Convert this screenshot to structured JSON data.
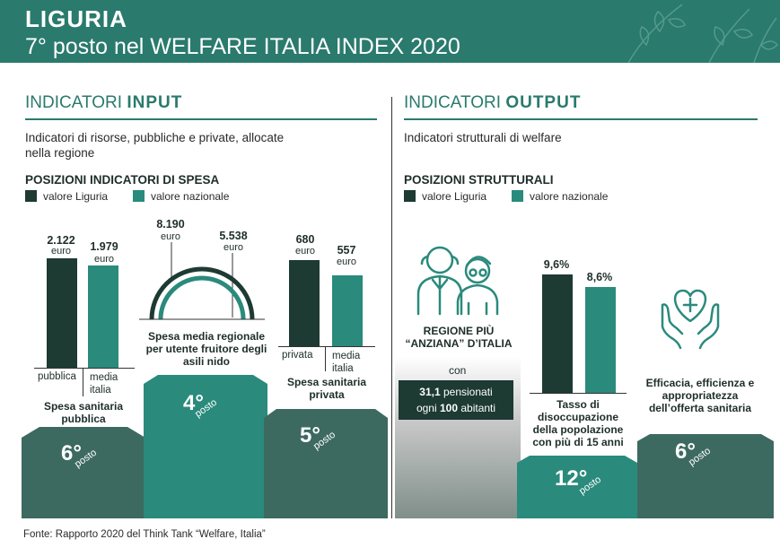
{
  "header": {
    "title": "LIGURIA",
    "subtitle": "7° posto nel WELFARE ITALIA INDEX 2020"
  },
  "input": {
    "title_plain": "INDICATORI ",
    "title_bold": "INPUT",
    "description": "Indicatori di risorse, pubbliche e private, allocate nella regione",
    "subtitle": "POSIZIONI INDICATORI DI SPESA",
    "legend": {
      "liguria": "valore Liguria",
      "nazionale": "valore nazionale"
    },
    "spesa_pubblica": {
      "caption": "Spesa sanitaria pubblica",
      "rank": "6°",
      "rank_word": "posto",
      "labels": [
        "pubblica",
        "media italia"
      ]
    },
    "asili": {
      "caption": "Spesa media regionale per utente fruitore degli asili nido",
      "rank": "4°",
      "rank_word": "posto"
    },
    "spesa_privata": {
      "caption": "Spesa sanitaria privata",
      "rank": "5°",
      "rank_word": "posto",
      "labels": [
        "privata",
        "media italia"
      ]
    }
  },
  "output": {
    "title_plain": "INDICATORI ",
    "title_bold": "OUTPUT",
    "description": "Indicatori strutturali di welfare",
    "subtitle": "POSIZIONI STRUTTURALI",
    "legend": {
      "liguria": "valore Liguria",
      "nazionale": "valore nazionale"
    },
    "anziana": {
      "caption": "REGIONE PIÙ “ANZIANA” D’ITALIA",
      "con": "con",
      "stat_value1": "31,1",
      "stat_text1": " pensionati",
      "stat_text2": "ogni ",
      "stat_value2": "100",
      "stat_text3": " abitanti"
    },
    "disoccupazione": {
      "caption": "Tasso di disoccupazione della popolazione con più di 15 anni",
      "rank": "12°",
      "rank_word": "posto"
    },
    "efficacia": {
      "caption": "Efficacia, efficienza e appropriatezza dell’offerta sanitaria",
      "rank": "6°",
      "rank_word": "posto"
    }
  },
  "footer": "Fonte: Rapporto 2020 del Think Tank “Welfare, Italia”",
  "colors": {
    "liguria": "#1d3a33",
    "nazionale": "#2a8a7c",
    "header": "#2a7a6d",
    "podium": "#3d6a60"
  },
  "chart_data": [
    {
      "type": "bar",
      "title": "Spesa sanitaria pubblica",
      "categories": [
        "pubblica",
        "media italia"
      ],
      "values": [
        2122,
        1979
      ],
      "value_labels": [
        "2.122",
        "1.979"
      ],
      "unit": "euro"
    },
    {
      "type": "arc",
      "title": "Spesa media regionale per utente fruitore degli asili nido",
      "categories": [
        "valore Liguria",
        "valore nazionale"
      ],
      "values": [
        8190,
        5538
      ],
      "value_labels": [
        "8.190",
        "5.538"
      ],
      "unit": "euro"
    },
    {
      "type": "bar",
      "title": "Spesa sanitaria privata",
      "categories": [
        "privata",
        "media italia"
      ],
      "values": [
        680,
        557
      ],
      "value_labels": [
        "680",
        "557"
      ],
      "unit": "euro"
    },
    {
      "type": "bar",
      "title": "Tasso di disoccupazione della popolazione con più di 15 anni",
      "categories": [
        "valore Liguria",
        "valore nazionale"
      ],
      "values": [
        9.6,
        8.6
      ],
      "value_labels": [
        "9,6%",
        "8,6%"
      ]
    }
  ]
}
